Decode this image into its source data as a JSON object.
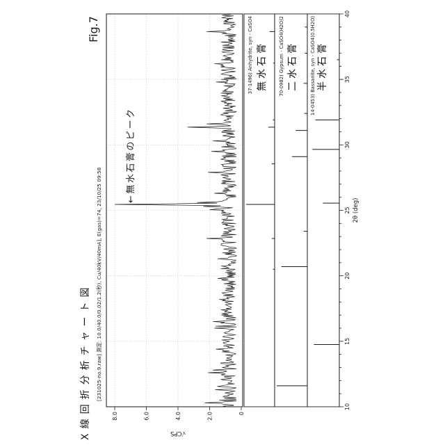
{
  "figure_label": "Fig.7",
  "title": "X線回折分析チャート図",
  "subtitle": "[231025-no.9.raw] 測定: 10.0/40.0/0.02/1.2(秒), Cu/40kV/40mA], E(gas)=74, 23/10/25 09:58",
  "annotation": {
    "text": "←無水石膏のピーク",
    "points_at_two_theta": 25.45
  },
  "colors": {
    "ink": "#1a1a1a",
    "grid": "#c6c6c6",
    "background": "#ffffff"
  },
  "chart_data": {
    "type": "line",
    "title": "X線回折分析チャート図",
    "xlabel": "2θ (deg)",
    "ylabel": "√CPS",
    "xlim": [
      10,
      40
    ],
    "ylim": [
      0,
      8.5
    ],
    "x_major_ticks": [
      "10",
      "15",
      "20",
      "25",
      "30",
      "35",
      "40"
    ],
    "x_minor_step": 1,
    "y_ticks": [
      "0",
      "2.0",
      "4.0",
      "6.0",
      "8.0"
    ],
    "y_tick_values": [
      0,
      2,
      4,
      6,
      8
    ],
    "grid": "dotted-major",
    "noise_band_sqrt_cps": [
      0.2,
      1.6
    ],
    "main_peaks": [
      [
        10.3,
        2.3
      ],
      [
        12.6,
        2.1
      ],
      [
        12.8,
        1.8
      ],
      [
        14.4,
        1.6
      ],
      [
        16.0,
        1.7
      ],
      [
        16.5,
        1.8
      ],
      [
        18.2,
        1.4
      ],
      [
        19.8,
        1.5
      ],
      [
        21.3,
        1.5
      ],
      [
        22.85,
        2.2
      ],
      [
        25.05,
        2.0
      ],
      [
        25.3,
        2.4
      ],
      [
        25.45,
        8.0
      ],
      [
        25.6,
        2.8
      ],
      [
        26.3,
        1.7
      ],
      [
        27.9,
        2.1
      ],
      [
        29.5,
        1.9
      ],
      [
        30.3,
        1.8
      ],
      [
        31.35,
        3.4
      ],
      [
        31.6,
        2.2
      ],
      [
        34.8,
        1.6
      ],
      [
        36.2,
        1.7
      ],
      [
        38.65,
        2.2
      ]
    ],
    "reference_patterns": [
      {
        "id": "37-1496) Anhydrite, syn - CaSO4",
        "label": "無水石膏",
        "sticks": [
          [
            20.5,
            0.06
          ],
          [
            22.85,
            0.1
          ],
          [
            25.45,
            1.0
          ],
          [
            28.55,
            0.1
          ],
          [
            31.35,
            0.22
          ],
          [
            31.9,
            0.06
          ],
          [
            36.25,
            0.05
          ],
          [
            38.65,
            0.18
          ]
        ]
      },
      {
        "id": "70-0982) Gypsum - CaSO4(H2O)2",
        "label": "二水石膏",
        "sticks": [
          [
            11.6,
            1.0
          ],
          [
            20.7,
            0.85
          ],
          [
            23.4,
            0.12
          ],
          [
            29.1,
            0.5
          ],
          [
            31.1,
            0.38
          ],
          [
            32.4,
            0.1
          ],
          [
            34.7,
            0.12
          ],
          [
            37.0,
            0.08
          ],
          [
            39.0,
            0.08
          ]
        ]
      },
      {
        "id": "14-0453) Bassanite, syn - CaSO4(0.5H2O)",
        "label": "半水石膏",
        "sticks": [
          [
            14.75,
            0.85
          ],
          [
            25.55,
            0.55
          ],
          [
            29.65,
            0.9
          ],
          [
            31.9,
            0.8
          ],
          [
            36.5,
            0.08
          ]
        ]
      }
    ]
  }
}
